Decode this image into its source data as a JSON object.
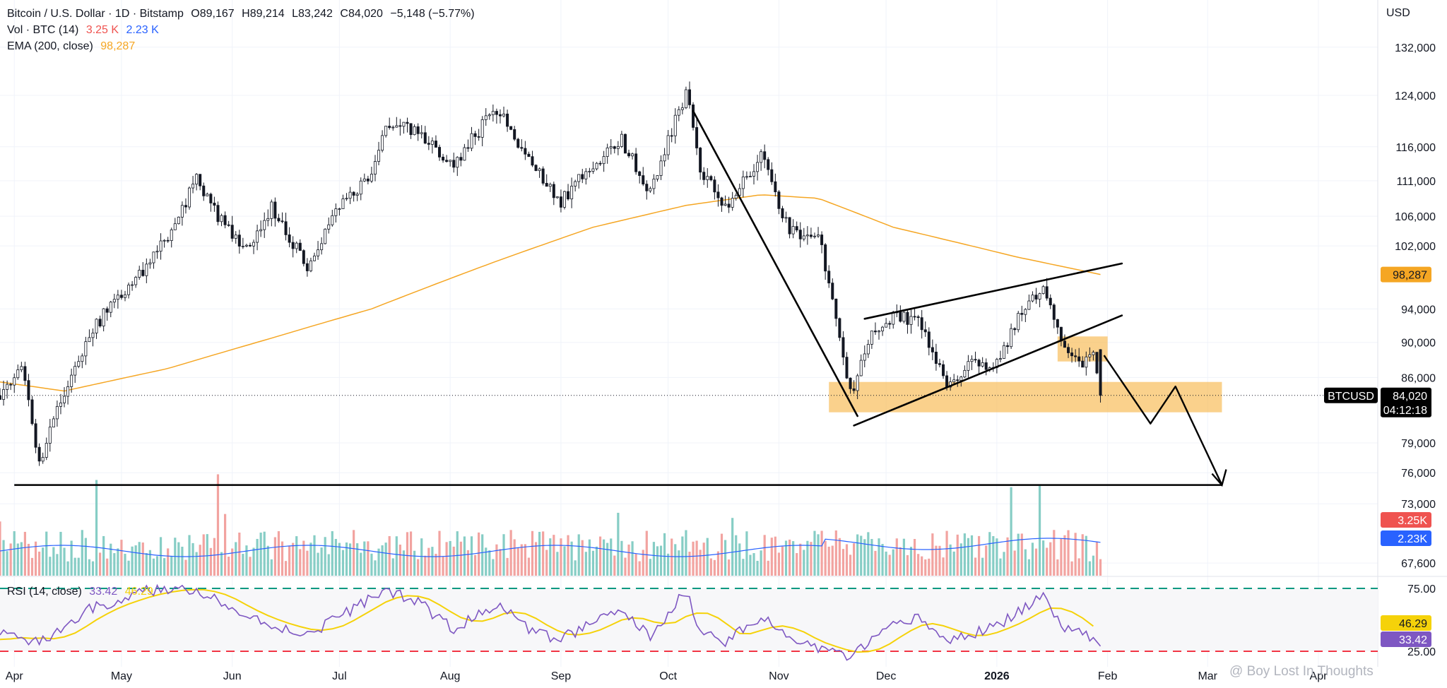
{
  "legend": {
    "title": "Bitcoin / U.S. Dollar · 1D · Bitstamp",
    "open": "O89,167",
    "high": "H89,214",
    "low": "L83,242",
    "close": "C84,020",
    "change": "−5,148 (−5.77%)",
    "vol_label": "Vol · BTC (14)",
    "vol_a": "3.25 K",
    "vol_b": "2.23 K",
    "ema_label": "EMA (200, close)",
    "ema_value": "98,287",
    "rsi_label": "RSI (14, close)",
    "rsi_value": "33.42",
    "rsi_ma_value": "46.29"
  },
  "currency": "USD",
  "watermark": "@ Boy Lost In Thoughts",
  "badges": {
    "ema": "98,287",
    "price_symbol": "BTCUSD",
    "price": "84,020",
    "countdown": "04:12:18",
    "vol_a": "3.25K",
    "vol_b": "2.23K",
    "rsi_ma": "46.29",
    "rsi": "33.42"
  },
  "colors": {
    "up": "#26a69a",
    "down": "#ef5350",
    "candle_body_up": "#0f3d2e",
    "ema": "#f5a623",
    "vol_up": "#86cdc5",
    "vol_down": "#f2a3a0",
    "vol_ma": "#2962ff",
    "rsi": "#7e57c2",
    "rsi_ma": "#f5d20a",
    "zone": "#f7b84f"
  },
  "chart_data": {
    "type": "candlestick",
    "scale": "log",
    "price_ticks": [
      "132,000",
      "124,000",
      "116,000",
      "111,000",
      "106,000",
      "102,000",
      "94,000",
      "90,000",
      "86,000",
      "79,000",
      "76,000",
      "73,000",
      "67,600"
    ],
    "rsi_ticks": [
      "75.00",
      "25.00"
    ],
    "time_labels": [
      "Apr",
      "May",
      "Jun",
      "Jul",
      "Aug",
      "Sep",
      "Oct",
      "Nov",
      "Dec",
      "2026",
      "Feb",
      "Mar",
      "Apr"
    ],
    "close_path": [
      [
        "2025-03-28",
        84000
      ],
      [
        "2025-04-03",
        87500
      ],
      [
        "2025-04-08",
        76500
      ],
      [
        "2025-04-15",
        84500
      ],
      [
        "2025-04-22",
        91000
      ],
      [
        "2025-04-28",
        94500
      ],
      [
        "2025-05-08",
        99000
      ],
      [
        "2025-05-14",
        103500
      ],
      [
        "2025-05-22",
        111000
      ],
      [
        "2025-05-30",
        104500
      ],
      [
        "2025-06-05",
        101500
      ],
      [
        "2025-06-12",
        107500
      ],
      [
        "2025-06-22",
        99000
      ],
      [
        "2025-06-30",
        107000
      ],
      [
        "2025-07-10",
        111500
      ],
      [
        "2025-07-14",
        120000
      ],
      [
        "2025-07-24",
        118000
      ],
      [
        "2025-08-02",
        113500
      ],
      [
        "2025-08-14",
        122000
      ],
      [
        "2025-08-24",
        113000
      ],
      [
        "2025-09-01",
        108000
      ],
      [
        "2025-09-10",
        113500
      ],
      [
        "2025-09-18",
        117000
      ],
      [
        "2025-09-26",
        109500
      ],
      [
        "2025-10-06",
        124500
      ],
      [
        "2025-10-10",
        113000
      ],
      [
        "2025-10-17",
        107000
      ],
      [
        "2025-10-27",
        114500
      ],
      [
        "2025-11-04",
        104000
      ],
      [
        "2025-11-12",
        103500
      ],
      [
        "2025-11-21",
        84000
      ],
      [
        "2025-11-26",
        90500
      ],
      [
        "2025-12-03",
        93000
      ],
      [
        "2025-12-10",
        92500
      ],
      [
        "2025-12-18",
        85500
      ],
      [
        "2025-12-25",
        87500
      ],
      [
        "2026-01-01",
        87500
      ],
      [
        "2026-01-07",
        93000
      ],
      [
        "2026-01-14",
        97000
      ],
      [
        "2026-01-20",
        89500
      ],
      [
        "2026-01-25",
        87000
      ],
      [
        "2026-01-28",
        89100
      ],
      [
        "2026-01-30",
        84020
      ]
    ],
    "ema200_path": [
      [
        "2025-03-28",
        85500
      ],
      [
        "2025-04-15",
        84500
      ],
      [
        "2025-05-14",
        87000
      ],
      [
        "2025-06-12",
        90500
      ],
      [
        "2025-07-10",
        94000
      ],
      [
        "2025-08-14",
        100000
      ],
      [
        "2025-09-10",
        104500
      ],
      [
        "2025-10-06",
        107500
      ],
      [
        "2025-10-27",
        109000
      ],
      [
        "2025-11-12",
        108500
      ],
      [
        "2025-12-03",
        104500
      ],
      [
        "2026-01-07",
        100500
      ],
      [
        "2026-01-30",
        98287
      ]
    ],
    "rsi_path": [
      [
        "2025-03-28",
        40
      ],
      [
        "2025-04-08",
        31
      ],
      [
        "2025-04-22",
        58
      ],
      [
        "2025-05-08",
        73
      ],
      [
        "2025-05-22",
        75
      ],
      [
        "2025-06-05",
        52
      ],
      [
        "2025-06-22",
        38
      ],
      [
        "2025-07-14",
        74
      ],
      [
        "2025-07-24",
        62
      ],
      [
        "2025-08-02",
        42
      ],
      [
        "2025-08-14",
        63
      ],
      [
        "2025-08-24",
        40
      ],
      [
        "2025-09-01",
        35
      ],
      [
        "2025-09-18",
        58
      ],
      [
        "2025-09-26",
        36
      ],
      [
        "2025-10-06",
        73
      ],
      [
        "2025-10-10",
        42
      ],
      [
        "2025-10-17",
        33
      ],
      [
        "2025-10-27",
        52
      ],
      [
        "2025-11-04",
        35
      ],
      [
        "2025-11-21",
        20
      ],
      [
        "2025-12-03",
        45
      ],
      [
        "2025-12-10",
        52
      ],
      [
        "2025-12-18",
        33
      ],
      [
        "2026-01-01",
        45
      ],
      [
        "2026-01-14",
        68
      ],
      [
        "2026-01-20",
        45
      ],
      [
        "2026-01-30",
        33.42
      ]
    ]
  }
}
